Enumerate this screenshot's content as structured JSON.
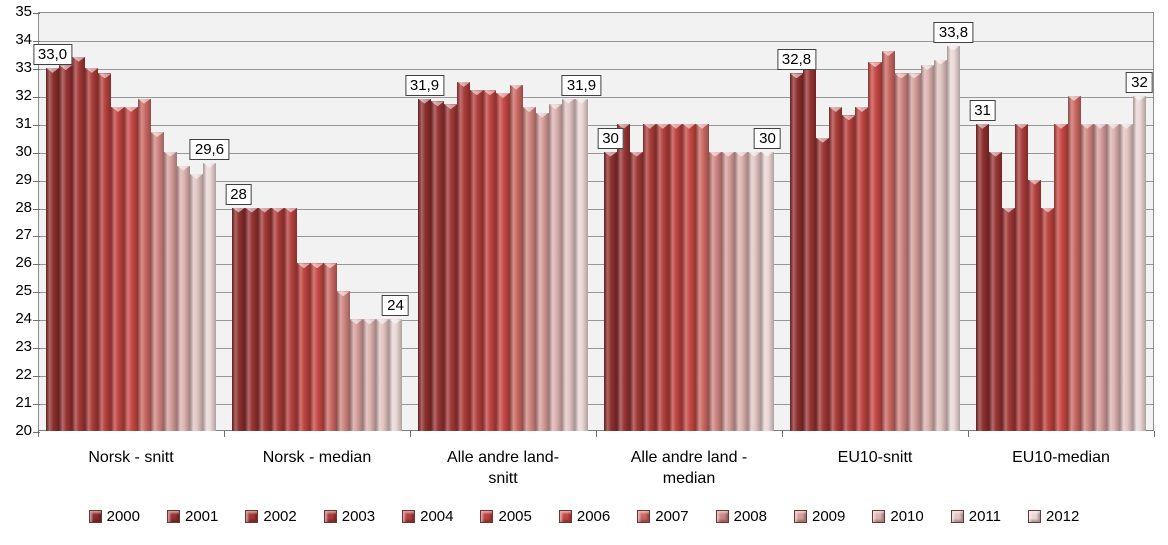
{
  "chart_data": {
    "type": "bar",
    "title": "",
    "xlabel": "",
    "ylabel": "",
    "ylim": [
      20,
      35
    ],
    "yticks": [
      35,
      34,
      33,
      32,
      31,
      30,
      29,
      28,
      27,
      26,
      25,
      24,
      23,
      22,
      21,
      20
    ],
    "grid": true,
    "legend_position": "bottom",
    "plot_bg": "#F2F2F2",
    "gridline_color": "#979797",
    "categories": [
      "Norsk - snitt",
      "Norsk - median",
      "Alle andre land-\nsnitt",
      "Alle andre land -\nmedian",
      "EU10-snitt",
      "EU10-median"
    ],
    "series": [
      {
        "name": "2000",
        "color": "#8C2C2B",
        "values": [
          33.0,
          28,
          31.9,
          30,
          32.8,
          31
        ]
      },
      {
        "name": "2001",
        "color": "#963231",
        "values": [
          33.1,
          28,
          31.8,
          31,
          33.4,
          30
        ]
      },
      {
        "name": "2002",
        "color": "#A03634",
        "values": [
          33.4,
          28,
          31.7,
          30,
          30.5,
          28
        ]
      },
      {
        "name": "2003",
        "color": "#AA3A37",
        "values": [
          33.0,
          28,
          32.5,
          31,
          31.6,
          31
        ]
      },
      {
        "name": "2004",
        "color": "#B43E3B",
        "values": [
          32.8,
          28,
          32.2,
          31,
          31.3,
          29
        ]
      },
      {
        "name": "2005",
        "color": "#BE423E",
        "values": [
          31.6,
          26,
          32.2,
          31,
          31.6,
          28
        ]
      },
      {
        "name": "2006",
        "color": "#C74642",
        "values": [
          31.6,
          26,
          32.1,
          31,
          33.2,
          31
        ]
      },
      {
        "name": "2007",
        "color": "#CA6660",
        "values": [
          31.9,
          26,
          32.4,
          31,
          33.6,
          32
        ]
      },
      {
        "name": "2008",
        "color": "#CF847F",
        "values": [
          30.7,
          25,
          31.6,
          30,
          32.8,
          31
        ]
      },
      {
        "name": "2009",
        "color": "#D59D9A",
        "values": [
          30.0,
          24,
          31.4,
          30,
          32.8,
          31
        ]
      },
      {
        "name": "2010",
        "color": "#DCB2AF",
        "values": [
          29.5,
          24,
          31.7,
          30,
          33.1,
          31
        ]
      },
      {
        "name": "2011",
        "color": "#E3C5C3",
        "values": [
          29.2,
          24,
          31.9,
          30,
          33.3,
          31
        ]
      },
      {
        "name": "2012",
        "color": "#EBD7D5",
        "values": [
          29.6,
          24,
          31.9,
          30,
          33.8,
          32
        ]
      }
    ],
    "data_labels": [
      {
        "group": 0,
        "bar": 0,
        "text": "33,0"
      },
      {
        "group": 0,
        "bar": 12,
        "text": "29,6"
      },
      {
        "group": 1,
        "bar": 0,
        "text": "28"
      },
      {
        "group": 1,
        "bar": 12,
        "text": "24"
      },
      {
        "group": 2,
        "bar": 0,
        "text": "31,9"
      },
      {
        "group": 2,
        "bar": 12,
        "text": "31,9"
      },
      {
        "group": 3,
        "bar": 0,
        "text": "30"
      },
      {
        "group": 3,
        "bar": 12,
        "text": "30"
      },
      {
        "group": 4,
        "bar": 0,
        "text": "32,8"
      },
      {
        "group": 4,
        "bar": 12,
        "text": "33,8"
      },
      {
        "group": 5,
        "bar": 0,
        "text": "31"
      },
      {
        "group": 5,
        "bar": 12,
        "text": "32"
      }
    ]
  }
}
